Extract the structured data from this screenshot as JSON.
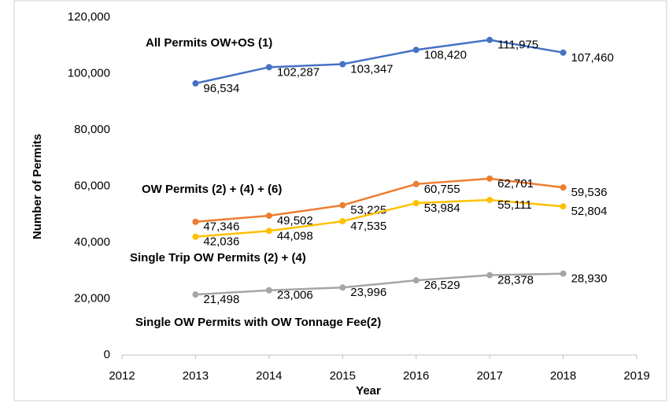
{
  "chart_data": {
    "type": "line",
    "x_label": "Year",
    "y_label": "Number of Permits",
    "x": [
      2013,
      2014,
      2015,
      2016,
      2017,
      2018
    ],
    "series": [
      {
        "name": "All Permits OW+OS  (1)",
        "color": "#4472c4",
        "values": [
          96534,
          102287,
          103347,
          108420,
          111975,
          107460
        ],
        "value_labels": [
          "96,534",
          "102,287",
          "103,347",
          "108,420",
          "111,975",
          "107,460"
        ]
      },
      {
        "name": "OW Permits (2) + (4) + (6)",
        "color": "#ed7d31",
        "values": [
          47346,
          49502,
          53225,
          60755,
          62701,
          59536
        ],
        "value_labels": [
          "47,346",
          "49,502",
          "53,225",
          "60,755",
          "62,701",
          "59,536"
        ]
      },
      {
        "name": "Single Trip OW Permits (2) + (4)",
        "color": "#ffc000",
        "values": [
          42036,
          44098,
          47535,
          53984,
          55111,
          52804
        ],
        "value_labels": [
          "42,036",
          "44,098",
          "47,535",
          "53,984",
          "55,111",
          "52,804"
        ]
      },
      {
        "name": "Single OW Permits with OW Tonnage Fee(2)",
        "color": "#a5a5a5",
        "values": [
          21498,
          23006,
          23996,
          26529,
          28378,
          28930
        ],
        "value_labels": [
          "21,498",
          "23,006",
          "23,996",
          "26,529",
          "28,378",
          "28,930"
        ]
      }
    ],
    "xlim": [
      2012,
      2019
    ],
    "xticks": [
      2012,
      2013,
      2014,
      2015,
      2016,
      2017,
      2018,
      2019
    ],
    "ylim": [
      0,
      120000
    ],
    "yticks": [
      0,
      {
        "value": 20000,
        "label": "20,000"
      },
      {
        "value": 40000,
        "label": "40,000"
      },
      {
        "value": 60000,
        "label": "60,000"
      },
      {
        "value": 80000,
        "label": "80,000"
      },
      {
        "value": 100000,
        "label": "100,000"
      },
      {
        "value": 120000,
        "label": "120,000"
      }
    ],
    "grid": false
  }
}
